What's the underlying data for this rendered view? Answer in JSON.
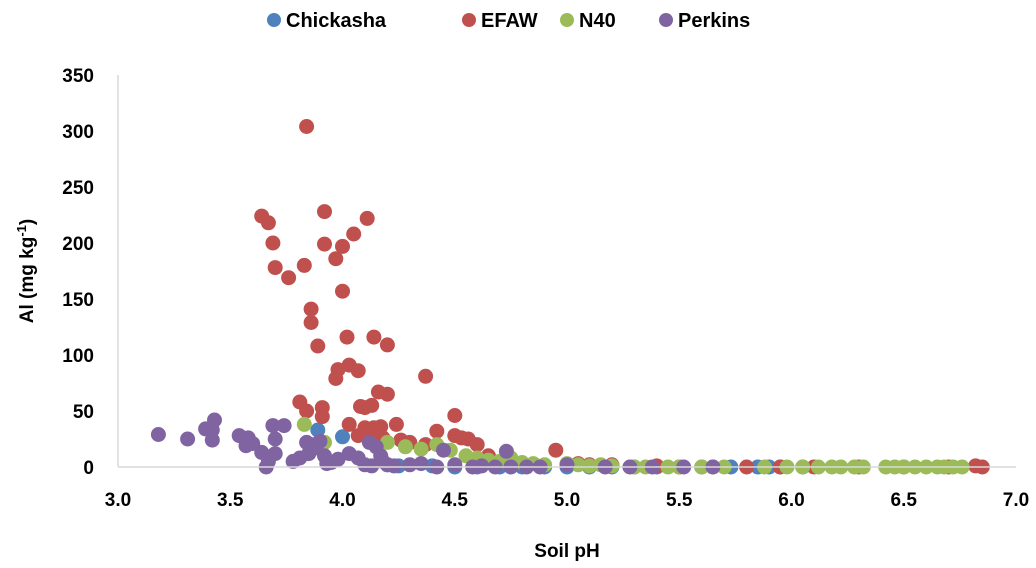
{
  "chart_data": {
    "type": "scatter",
    "xlabel": "Soil pH",
    "ylabel_main": "Al (mg kg",
    "ylabel_sup": "-1",
    "ylabel_close": ")",
    "xlim": [
      3.0,
      7.0
    ],
    "ylim": [
      0,
      350
    ],
    "xticks": [
      3.0,
      3.5,
      4.0,
      4.5,
      5.0,
      5.5,
      6.0,
      6.5,
      7.0
    ],
    "xtick_labels": [
      "3.0",
      "3.5",
      "4.0",
      "4.5",
      "5.0",
      "5.5",
      "6.0",
      "6.5",
      "7.0"
    ],
    "yticks": [
      0,
      50,
      100,
      150,
      200,
      250,
      300,
      350
    ],
    "ytick_labels": [
      "0",
      "50",
      "100",
      "150",
      "200",
      "250",
      "300",
      "350"
    ],
    "grid": false,
    "legend_position": "top",
    "series": [
      {
        "name": "Chickasha",
        "color": "#4F81BD",
        "points": [
          [
            3.89,
            33
          ],
          [
            4.0,
            27
          ],
          [
            4.2,
            2
          ],
          [
            4.25,
            1
          ],
          [
            4.4,
            1
          ],
          [
            4.5,
            0
          ],
          [
            4.6,
            0
          ],
          [
            4.7,
            0
          ],
          [
            4.8,
            0
          ],
          [
            4.9,
            0
          ],
          [
            5.0,
            0
          ],
          [
            5.1,
            0
          ],
          [
            5.2,
            0
          ],
          [
            5.3,
            0
          ],
          [
            5.4,
            0
          ],
          [
            5.5,
            0
          ],
          [
            5.6,
            0
          ],
          [
            5.73,
            0
          ],
          [
            5.85,
            0
          ],
          [
            5.9,
            0
          ],
          [
            5.95,
            0
          ],
          [
            6.05,
            0
          ]
        ]
      },
      {
        "name": "EFAW",
        "color": "#C0504D",
        "points": [
          [
            3.84,
            304
          ],
          [
            3.64,
            224
          ],
          [
            3.67,
            218
          ],
          [
            3.69,
            200
          ],
          [
            3.7,
            178
          ],
          [
            3.76,
            169
          ],
          [
            3.83,
            180
          ],
          [
            3.92,
            228
          ],
          [
            3.92,
            199
          ],
          [
            3.97,
            186
          ],
          [
            4.0,
            197
          ],
          [
            4.05,
            208
          ],
          [
            4.11,
            222
          ],
          [
            4.0,
            157
          ],
          [
            3.86,
            141
          ],
          [
            3.86,
            129
          ],
          [
            3.89,
            108
          ],
          [
            4.02,
            116
          ],
          [
            4.14,
            116
          ],
          [
            4.2,
            109
          ],
          [
            3.98,
            87
          ],
          [
            4.03,
            91
          ],
          [
            4.07,
            86
          ],
          [
            3.97,
            79
          ],
          [
            4.37,
            81
          ],
          [
            4.16,
            67
          ],
          [
            4.2,
            65
          ],
          [
            3.81,
            58
          ],
          [
            3.84,
            50
          ],
          [
            3.91,
            53
          ],
          [
            3.91,
            45
          ],
          [
            4.08,
            54
          ],
          [
            4.1,
            53
          ],
          [
            4.13,
            55
          ],
          [
            4.03,
            38
          ],
          [
            4.1,
            35
          ],
          [
            4.14,
            35
          ],
          [
            4.17,
            36
          ],
          [
            4.24,
            38
          ],
          [
            4.07,
            28
          ],
          [
            4.12,
            30
          ],
          [
            4.18,
            26
          ],
          [
            4.26,
            24
          ],
          [
            4.3,
            22
          ],
          [
            4.37,
            20
          ],
          [
            4.42,
            32
          ],
          [
            4.5,
            46
          ],
          [
            4.5,
            28
          ],
          [
            4.53,
            26
          ],
          [
            4.56,
            25
          ],
          [
            4.6,
            20
          ],
          [
            4.65,
            10
          ],
          [
            4.75,
            5
          ],
          [
            4.95,
            15
          ],
          [
            5.05,
            3
          ],
          [
            5.1,
            2
          ],
          [
            5.2,
            2
          ],
          [
            5.4,
            1
          ],
          [
            5.5,
            0
          ],
          [
            5.65,
            0
          ],
          [
            5.8,
            0
          ],
          [
            5.95,
            0
          ],
          [
            6.1,
            0
          ],
          [
            6.3,
            0
          ],
          [
            6.5,
            0
          ],
          [
            6.7,
            0
          ],
          [
            6.82,
            1
          ],
          [
            6.85,
            0
          ]
        ]
      },
      {
        "name": "N40",
        "color": "#9BBB59",
        "points": [
          [
            3.83,
            38
          ],
          [
            3.92,
            22
          ],
          [
            4.2,
            22
          ],
          [
            4.28,
            18
          ],
          [
            4.35,
            16
          ],
          [
            4.42,
            20
          ],
          [
            4.48,
            15
          ],
          [
            4.55,
            10
          ],
          [
            4.6,
            8
          ],
          [
            4.65,
            6
          ],
          [
            4.7,
            5
          ],
          [
            4.75,
            8
          ],
          [
            4.8,
            4
          ],
          [
            4.85,
            3
          ],
          [
            4.9,
            2
          ],
          [
            5.0,
            3
          ],
          [
            5.05,
            2
          ],
          [
            5.1,
            1
          ],
          [
            5.15,
            2
          ],
          [
            5.2,
            1
          ],
          [
            5.3,
            0
          ],
          [
            5.35,
            0
          ],
          [
            5.45,
            0
          ],
          [
            5.5,
            0
          ],
          [
            5.6,
            0
          ],
          [
            5.7,
            0
          ],
          [
            5.88,
            0
          ],
          [
            5.98,
            0
          ],
          [
            6.05,
            0
          ],
          [
            6.12,
            0
          ],
          [
            6.18,
            0
          ],
          [
            6.22,
            0
          ],
          [
            6.28,
            0
          ],
          [
            6.32,
            0
          ],
          [
            6.42,
            0
          ],
          [
            6.46,
            0
          ],
          [
            6.5,
            0
          ],
          [
            6.55,
            0
          ],
          [
            6.6,
            0
          ],
          [
            6.65,
            0
          ],
          [
            6.68,
            0
          ],
          [
            6.72,
            0
          ],
          [
            6.76,
            0
          ]
        ]
      },
      {
        "name": "Perkins",
        "color": "#8064A2",
        "points": [
          [
            3.18,
            29
          ],
          [
            3.31,
            25
          ],
          [
            3.39,
            34
          ],
          [
            3.43,
            42
          ],
          [
            3.42,
            24
          ],
          [
            3.42,
            33
          ],
          [
            3.54,
            28
          ],
          [
            3.58,
            26
          ],
          [
            3.6,
            21
          ],
          [
            3.57,
            19
          ],
          [
            3.64,
            13
          ],
          [
            3.66,
            0
          ],
          [
            3.67,
            5
          ],
          [
            3.69,
            37
          ],
          [
            3.7,
            25
          ],
          [
            3.7,
            12
          ],
          [
            3.74,
            37
          ],
          [
            3.78,
            5
          ],
          [
            3.81,
            8
          ],
          [
            3.84,
            22
          ],
          [
            3.85,
            12
          ],
          [
            3.86,
            20
          ],
          [
            3.88,
            17
          ],
          [
            3.9,
            23
          ],
          [
            3.92,
            10
          ],
          [
            3.93,
            3
          ],
          [
            3.95,
            4
          ],
          [
            3.98,
            7
          ],
          [
            4.03,
            12
          ],
          [
            4.07,
            8
          ],
          [
            4.1,
            2
          ],
          [
            4.12,
            22
          ],
          [
            4.13,
            1
          ],
          [
            4.15,
            18
          ],
          [
            4.17,
            10
          ],
          [
            4.18,
            5
          ],
          [
            4.2,
            2
          ],
          [
            4.23,
            1
          ],
          [
            4.3,
            2
          ],
          [
            4.35,
            3
          ],
          [
            4.42,
            0
          ],
          [
            4.45,
            15
          ],
          [
            4.5,
            2
          ],
          [
            4.58,
            0
          ],
          [
            4.62,
            1
          ],
          [
            4.68,
            0
          ],
          [
            4.73,
            14
          ],
          [
            4.75,
            0
          ],
          [
            4.82,
            0
          ],
          [
            4.88,
            0
          ],
          [
            5.0,
            2
          ],
          [
            5.17,
            0
          ],
          [
            5.28,
            0
          ],
          [
            5.38,
            0
          ],
          [
            5.52,
            0
          ],
          [
            5.65,
            0
          ]
        ]
      }
    ]
  }
}
